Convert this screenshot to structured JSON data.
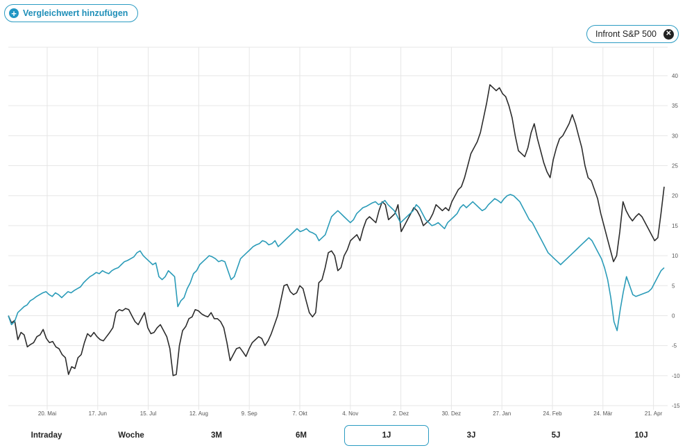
{
  "compare_button": {
    "label": "Vergleichwert hinzufügen",
    "icon": "plus-icon"
  },
  "comparison_chip": {
    "label": "Infront S&P 500",
    "icon": "close-icon"
  },
  "ranges": {
    "items": [
      "Intraday",
      "Woche",
      "3M",
      "6M",
      "1J",
      "3J",
      "5J",
      "10J"
    ],
    "selected": "1J"
  },
  "colors": {
    "main": "#2b2b2b",
    "comparison": "#2a9bb8",
    "accent": "#2a9bc2"
  },
  "chart_data": {
    "type": "line",
    "x_tick_labels": [
      "20. Mai",
      "17. Jun",
      "15. Jul",
      "12. Aug",
      "9. Sep",
      "7. Okt",
      "4. Nov",
      "2. Dez",
      "30. Dez",
      "27. Jan",
      "24. Feb",
      "24. Mär",
      "21. Apr"
    ],
    "y_tick_labels": [
      "40",
      "35",
      "30",
      "25",
      "20",
      "15",
      "10",
      "5",
      "0",
      "-5",
      "-10",
      "-15"
    ],
    "ylim": [
      -15,
      40
    ],
    "y_ticks": [
      -15,
      -10,
      -5,
      0,
      5,
      10,
      15,
      20,
      25,
      30,
      35,
      40
    ],
    "grid": true,
    "series": [
      {
        "values": [
          0.0,
          -1.2,
          -0.8,
          -4.0,
          -2.8,
          -3.2,
          -5.2,
          -4.8,
          -4.5,
          -3.5,
          -3.2,
          -2.3,
          -3.8,
          -4.5,
          -4.3,
          -5.2,
          -5.5,
          -6.5,
          -7.0,
          -9.8,
          -8.5,
          -8.8,
          -7.0,
          -6.5,
          -4.5,
          -3.0,
          -3.5,
          -2.8,
          -3.5,
          -4.0,
          -4.2,
          -3.5,
          -2.8,
          -2.0,
          0.5,
          1.0,
          0.8,
          1.2,
          1.0,
          0.0,
          -1.0,
          -1.5,
          -0.5,
          0.5,
          -2.0,
          -3.0,
          -2.8,
          -2.0,
          -1.5,
          -2.5,
          -3.5,
          -5.5,
          -10.0,
          -9.8,
          -5.0,
          -2.5,
          -1.8,
          -0.5,
          -0.2,
          1.0,
          0.8,
          0.3,
          0.0,
          -0.2,
          0.5,
          -0.5,
          -0.5,
          -1.0,
          -2.0,
          -4.5,
          -7.5,
          -6.5,
          -5.5,
          -5.3,
          -6.0,
          -6.8,
          -5.5,
          -4.5,
          -4.0,
          -3.5,
          -3.8,
          -5.0,
          -4.2,
          -3.0,
          -1.5,
          0.0,
          2.5,
          5.0,
          5.2,
          4.0,
          3.5,
          3.8,
          5.0,
          4.5,
          2.5,
          0.5,
          -0.2,
          0.5,
          5.5,
          6.0,
          8.0,
          10.5,
          10.8,
          10.0,
          7.5,
          8.0,
          10.0,
          11.0,
          12.5,
          13.0,
          13.5,
          12.5,
          14.5,
          16.0,
          16.5,
          16.0,
          15.5,
          17.5,
          19.0,
          18.5,
          16.0,
          16.5,
          17.0,
          18.5,
          14.0,
          15.0,
          16.0,
          17.0,
          18.0,
          17.5,
          16.5,
          15.0,
          15.5,
          16.0,
          17.0,
          18.5,
          18.0,
          17.5,
          18.0,
          17.5,
          19.0,
          20.0,
          21.0,
          21.5,
          23.0,
          25.0,
          27.0,
          28.0,
          29.0,
          30.5,
          33.0,
          35.5,
          38.5,
          38.0,
          37.5,
          38.0,
          37.0,
          36.5,
          35.0,
          33.0,
          30.0,
          27.5,
          27.0,
          26.5,
          28.0,
          30.5,
          32.0,
          29.5,
          27.5,
          25.5,
          24.0,
          23.0,
          26.0,
          28.0,
          29.5,
          30.0,
          31.0,
          32.0,
          33.5,
          32.0,
          30.0,
          28.0,
          25.0,
          23.0,
          22.5,
          21.0,
          19.5,
          17.0,
          15.0,
          13.0,
          11.0,
          9.0,
          10.0,
          14.0,
          19.0,
          17.5,
          16.5,
          15.8,
          16.5,
          17.0,
          16.5,
          15.5,
          14.5,
          13.5,
          12.5,
          13.0,
          17.0,
          21.5
        ],
        "color": "#2b2b2b"
      },
      {
        "name": "Infront S&P 500",
        "values": [
          0.0,
          -1.5,
          -1.0,
          0.5,
          1.0,
          1.5,
          1.8,
          2.5,
          2.8,
          3.2,
          3.5,
          3.8,
          4.0,
          3.5,
          3.2,
          3.8,
          3.5,
          3.0,
          3.5,
          4.0,
          3.8,
          4.2,
          4.5,
          4.8,
          5.5,
          6.0,
          6.5,
          6.8,
          7.2,
          7.0,
          7.5,
          7.2,
          7.0,
          7.5,
          7.8,
          8.0,
          8.5,
          9.0,
          9.2,
          9.5,
          9.8,
          10.5,
          10.8,
          10.0,
          9.5,
          9.0,
          8.5,
          8.8,
          6.5,
          6.0,
          6.5,
          7.5,
          7.0,
          6.5,
          1.5,
          2.5,
          3.0,
          4.5,
          5.5,
          7.0,
          7.5,
          8.5,
          9.0,
          9.5,
          10.0,
          9.8,
          9.5,
          9.0,
          9.2,
          9.0,
          7.5,
          6.0,
          6.5,
          8.0,
          9.5,
          10.0,
          10.5,
          11.0,
          11.5,
          11.8,
          12.0,
          12.5,
          12.3,
          11.8,
          12.0,
          12.5,
          11.5,
          12.0,
          12.5,
          13.0,
          13.5,
          14.0,
          14.5,
          14.0,
          14.2,
          14.5,
          14.0,
          13.8,
          13.5,
          12.5,
          13.0,
          13.5,
          15.0,
          16.5,
          17.0,
          17.5,
          17.0,
          16.5,
          16.0,
          15.5,
          16.0,
          17.0,
          17.5,
          18.0,
          18.2,
          18.5,
          18.8,
          19.0,
          18.5,
          18.8,
          19.2,
          18.5,
          18.0,
          17.5,
          16.5,
          15.5,
          16.0,
          16.5,
          17.0,
          17.5,
          18.5,
          18.0,
          17.0,
          16.0,
          15.5,
          15.0,
          15.2,
          15.5,
          15.0,
          14.5,
          15.5,
          16.0,
          16.5,
          17.0,
          18.0,
          18.5,
          18.0,
          18.5,
          19.0,
          18.5,
          18.0,
          17.5,
          17.8,
          18.5,
          19.0,
          19.5,
          19.2,
          18.8,
          19.5,
          20.0,
          20.2,
          20.0,
          19.5,
          19.0,
          18.0,
          17.0,
          16.0,
          15.5,
          14.5,
          13.5,
          12.5,
          11.5,
          10.5,
          10.0,
          9.5,
          9.0,
          8.5,
          9.0,
          9.5,
          10.0,
          10.5,
          11.0,
          11.5,
          12.0,
          12.5,
          13.0,
          12.5,
          11.5,
          10.5,
          9.5,
          8.0,
          6.0,
          3.0,
          -1.0,
          -2.5,
          1.0,
          4.0,
          6.5,
          5.0,
          3.5,
          3.2,
          3.4,
          3.6,
          3.8,
          4.0,
          4.5,
          5.5,
          6.5,
          7.5,
          8.0
        ]
      }
    ]
  }
}
